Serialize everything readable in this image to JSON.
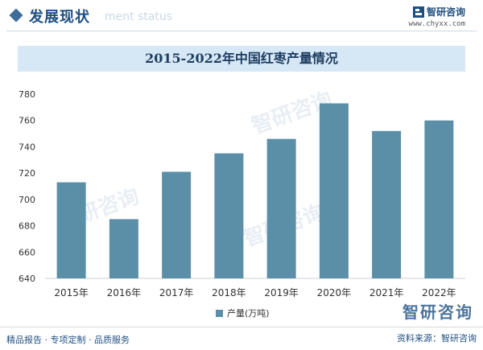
{
  "header": {
    "title": "发展现状",
    "subtitle_en": "ment status",
    "brand_name": "智研咨询",
    "brand_url": "www.chyxx.com"
  },
  "chart_data": {
    "type": "bar",
    "title": "2015-2022年中国红枣产量情况",
    "categories": [
      "2015年",
      "2016年",
      "2017年",
      "2018年",
      "2019年",
      "2020年",
      "2021年",
      "2022年"
    ],
    "series": [
      {
        "name": "产量(万吨)",
        "values": [
          713,
          685,
          721,
          735,
          746,
          773,
          752,
          760
        ],
        "color": "#5b8fa8"
      }
    ],
    "ylim": [
      640,
      780
    ],
    "yticks": [
      640,
      660,
      680,
      700,
      720,
      740,
      760,
      780
    ],
    "legend_position": "bottom",
    "grid": false
  },
  "watermark": {
    "text": "智研咨询"
  },
  "footer": {
    "left": "精品报告 · 专项定制 · 品质服务",
    "right": "资料来源：智研咨询"
  }
}
